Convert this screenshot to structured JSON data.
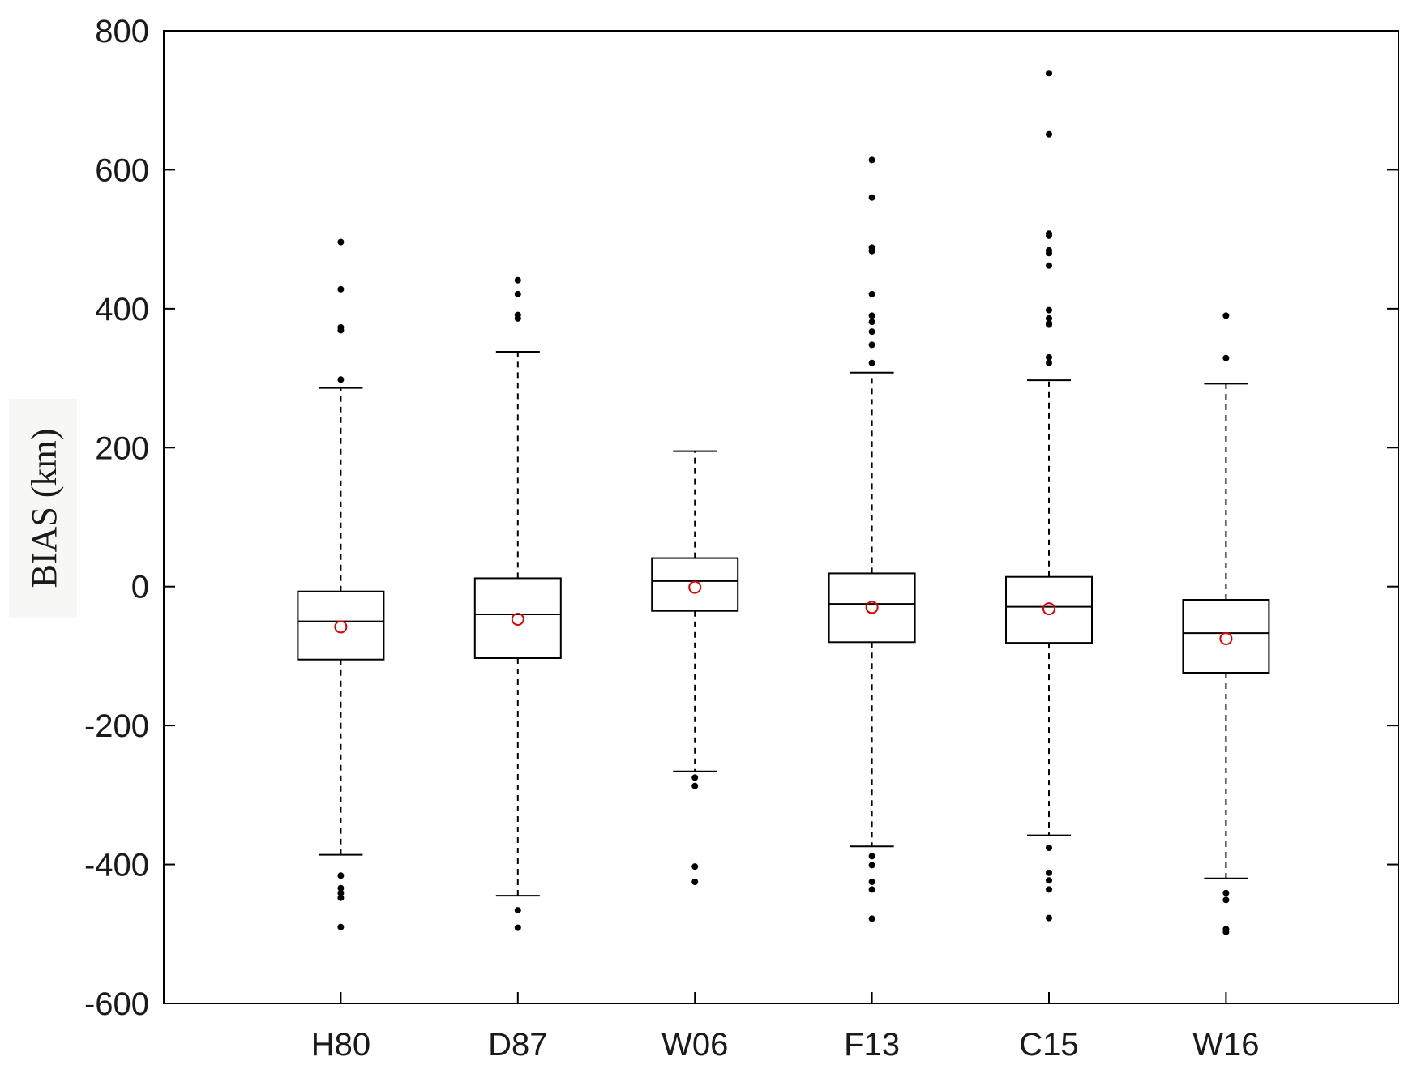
{
  "chart_data": {
    "type": "box",
    "title": "",
    "xlabel": "",
    "ylabel": "BIAS (km)",
    "ylim": [
      -600,
      800
    ],
    "yticks": [
      -600,
      -400,
      -200,
      0,
      200,
      400,
      600,
      800
    ],
    "grid": false,
    "categories": [
      "H80",
      "D87",
      "W06",
      "F13",
      "C15",
      "W16"
    ],
    "colors": {
      "box": "#000000",
      "mean_marker": "#e00000",
      "outlier": "#000000"
    },
    "boxes": [
      {
        "category": "H80",
        "whisker_low": -386,
        "q1": -105,
        "median": -50,
        "q3": -7,
        "whisker_high": 286,
        "mean": -58,
        "outliers": [
          496,
          428,
          373,
          369,
          298,
          -416,
          -434,
          -441,
          -448,
          -490
        ]
      },
      {
        "category": "D87",
        "whisker_low": -445,
        "q1": -103,
        "median": -40,
        "q3": 12,
        "whisker_high": 338,
        "mean": -47,
        "outliers": [
          441,
          421,
          391,
          386,
          -466,
          -491
        ]
      },
      {
        "category": "W06",
        "whisker_low": -266,
        "q1": -35,
        "median": 8,
        "q3": 41,
        "whisker_high": 195,
        "mean": -1,
        "outliers": [
          -275,
          -287,
          -403,
          -425
        ]
      },
      {
        "category": "F13",
        "whisker_low": -374,
        "q1": -80,
        "median": -25,
        "q3": 19,
        "whisker_high": 308,
        "mean": -30,
        "outliers": [
          614,
          560,
          488,
          483,
          421,
          390,
          381,
          367,
          348,
          322,
          -388,
          -401,
          -425,
          -436,
          -478
        ]
      },
      {
        "category": "C15",
        "whisker_low": -358,
        "q1": -81,
        "median": -29,
        "q3": 14,
        "whisker_high": 297,
        "mean": -32,
        "outliers": [
          739,
          651,
          508,
          505,
          484,
          480,
          462,
          398,
          386,
          379,
          377,
          330,
          322,
          -376,
          -412,
          -423,
          -436,
          -477
        ]
      },
      {
        "category": "W16",
        "whisker_low": -420,
        "q1": -124,
        "median": -67,
        "q3": -19,
        "whisker_high": 292,
        "mean": -75,
        "outliers": [
          390,
          329,
          -441,
          -451,
          -493,
          -497
        ]
      }
    ]
  }
}
